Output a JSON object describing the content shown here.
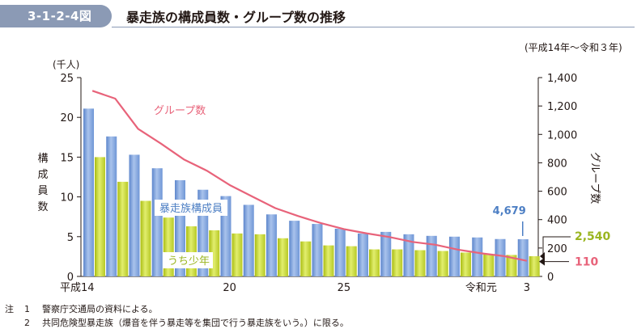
{
  "figure": {
    "number": "3-1-2-4図",
    "title": "暴走族の構成員数・グループ数の推移",
    "period": "(平成14年～令和３年)"
  },
  "chart_data": {
    "type": "bar",
    "categories": [
      "平成14",
      "15",
      "16",
      "17",
      "18",
      "19",
      "20",
      "21",
      "22",
      "23",
      "24",
      "25",
      "26",
      "27",
      "28",
      "29",
      "30",
      "令和元",
      "2",
      "3"
    ],
    "x_tick_labels": {
      "0": "平成14",
      "6": "20",
      "11": "25",
      "17": "令和元",
      "19": "3"
    },
    "left_axis": {
      "unit_label": "(千人)",
      "label": "構成員数",
      "ylim": [
        0,
        25
      ],
      "ticks": [
        "0",
        "5",
        "10",
        "15",
        "20",
        "25"
      ]
    },
    "right_axis": {
      "label": "グループ数",
      "ylim": [
        0,
        1400
      ],
      "ticks": [
        "0",
        "200",
        "400",
        "600",
        "800",
        "1,000",
        "1,200",
        "1,400"
      ]
    },
    "series": [
      {
        "name": "暴走族構成員",
        "axis": "left",
        "kind": "bar",
        "color": "#7fa3dc",
        "values": [
          21.1,
          17.6,
          15.3,
          13.6,
          12.1,
          10.9,
          10.1,
          9.0,
          7.8,
          7.0,
          6.6,
          6.0,
          5.4,
          5.6,
          5.3,
          5.1,
          5.0,
          4.9,
          4.7,
          4.679
        ]
      },
      {
        "name": "うち少年",
        "axis": "left",
        "kind": "bar",
        "color": "#c6d82f",
        "values": [
          15.0,
          11.9,
          9.5,
          7.4,
          6.3,
          5.8,
          5.4,
          5.3,
          4.8,
          4.4,
          3.9,
          3.8,
          3.4,
          3.4,
          3.3,
          3.2,
          3.0,
          2.8,
          2.7,
          2.54
        ]
      },
      {
        "name": "グループ数",
        "axis": "right",
        "kind": "line",
        "color": "#e8637a",
        "values": [
          1307,
          1252,
          1039,
          935,
          824,
          745,
          644,
          562,
          481,
          425,
          375,
          333,
          303,
          277,
          243,
          223,
          188,
          163,
          143,
          110
        ]
      }
    ],
    "annotations": {
      "members_last": "4,679",
      "juvenile_last": "2,540",
      "groups_last": "110"
    },
    "colors": {
      "members": "#7fa3dc",
      "juvenile": "#c6d82f",
      "groups": "#e8637a",
      "members_text": "#4d7fc4",
      "juvenile_text": "#9ab520"
    }
  },
  "notes": [
    {
      "label": "注",
      "num": "1",
      "text": "警察庁交通局の資料による。"
    },
    {
      "label": "",
      "num": "2",
      "text": "共同危険型暴走族（爆音を伴う暴走等を集団で行う暴走族をいう。）に限る。"
    }
  ]
}
